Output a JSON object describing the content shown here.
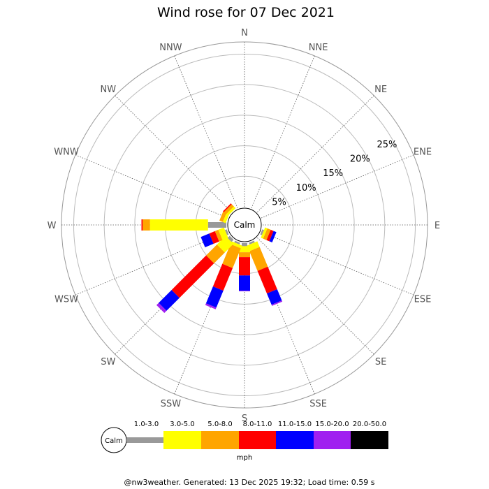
{
  "chart_data": {
    "type": "wind-rose",
    "title": "Wind rose for 07 Dec 2021",
    "directions": [
      "N",
      "NNE",
      "NE",
      "ENE",
      "E",
      "ESE",
      "SE",
      "SSE",
      "S",
      "SSW",
      "SW",
      "WSW",
      "W",
      "WNW",
      "NW",
      "NNW"
    ],
    "radial_ticks": [
      {
        "value": 5,
        "label": "5%"
      },
      {
        "value": 10,
        "label": "10%"
      },
      {
        "value": 15,
        "label": "15%"
      },
      {
        "value": 20,
        "label": "20%"
      },
      {
        "value": 25,
        "label": "25%"
      }
    ],
    "rmax": 27,
    "calm_label": "Calm",
    "unit": "mph",
    "speed_bins": [
      {
        "label": "1.0-3.0",
        "color": "#999999"
      },
      {
        "label": "3.0-5.0",
        "color": "#ffff00"
      },
      {
        "label": "5.0-8.0",
        "color": "#ffa500"
      },
      {
        "label": "8.0-11.0",
        "color": "#ff0000"
      },
      {
        "label": "11.0-15.0",
        "color": "#0000ff"
      },
      {
        "label": "15.0-20.0",
        "color": "#a020f0"
      },
      {
        "label": "20.0-50.0",
        "color": "#000000"
      }
    ],
    "series": [
      {
        "direction": "ESE",
        "values": [
          0.3,
          0.4,
          0.6,
          0.5,
          0.5,
          0.0,
          0.0
        ]
      },
      {
        "direction": "SSE",
        "values": [
          0.3,
          1.0,
          3.5,
          4.0,
          2.0,
          0.2,
          0.0
        ]
      },
      {
        "direction": "S",
        "values": [
          0.5,
          1.0,
          0.8,
          3.0,
          2.5,
          0.1,
          0.0
        ]
      },
      {
        "direction": "SSW",
        "values": [
          0.3,
          0.5,
          3.5,
          4.0,
          3.0,
          0.3,
          0.0
        ]
      },
      {
        "direction": "SW",
        "values": [
          0.5,
          2.0,
          2.5,
          8.0,
          3.0,
          0.5,
          0.0
        ]
      },
      {
        "direction": "WSW",
        "values": [
          0.3,
          1.0,
          0.6,
          1.0,
          1.5,
          0.0,
          0.0
        ]
      },
      {
        "direction": "W",
        "values": [
          3.0,
          9.5,
          1.2,
          0.2,
          0.0,
          0.0,
          0.0
        ]
      },
      {
        "direction": "WNW",
        "values": [
          0.0,
          0.5,
          0.6,
          0.0,
          0.0,
          0.0,
          0.0
        ]
      },
      {
        "direction": "NW",
        "values": [
          0.0,
          0.4,
          0.5,
          0.2,
          0.0,
          0.0,
          0.0
        ]
      }
    ]
  },
  "footer": "@nw3weather. Generated: 13 Dec 2025 19:32; Load time: 0.59 s"
}
